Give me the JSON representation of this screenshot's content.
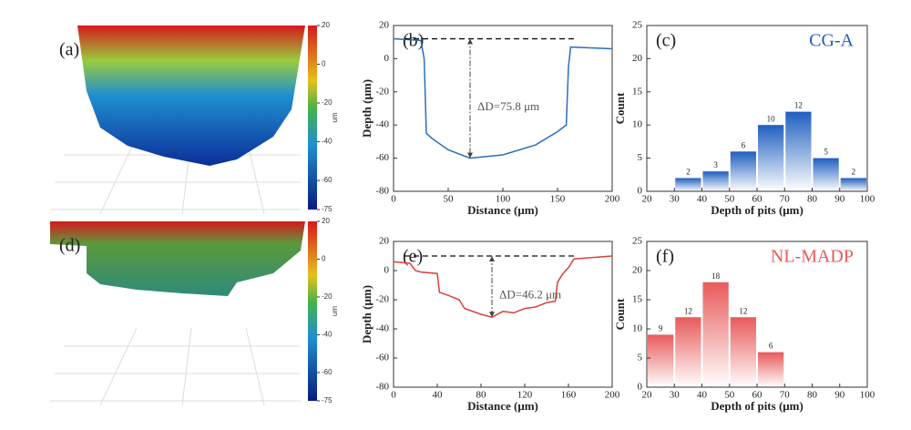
{
  "chart_data": [
    {
      "type": "surface",
      "label": "(a)",
      "colorbar": {
        "label": "um",
        "lim": [
          -75,
          20
        ],
        "ticks": [
          20,
          0,
          -20,
          -40,
          -60,
          -75
        ]
      }
    },
    {
      "type": "line",
      "label": "(b)",
      "xlabel": "Distance (μm)",
      "ylabel": "Depth (μm)",
      "annotation": "ΔD=75.8 μm",
      "color": "#2a6ebb",
      "x": [
        0,
        25,
        28,
        30,
        35,
        50,
        70,
        100,
        130,
        150,
        158,
        160,
        162,
        200
      ],
      "values": [
        12,
        11,
        0,
        -45,
        -48,
        -55,
        -60,
        -58,
        -52,
        -44,
        -40,
        -5,
        7,
        6
      ],
      "xlim": [
        0,
        200
      ],
      "xticks": [
        0,
        50,
        100,
        150,
        200
      ],
      "ylim": [
        -80,
        20
      ],
      "yticks": [
        -80,
        -60,
        -40,
        -20,
        0,
        20
      ]
    },
    {
      "type": "histogram",
      "label": "(c)",
      "title": "CG-A",
      "xlabel": "Depth of pits (μm)",
      "ylabel": "Count",
      "color": "#1f5fbf",
      "bins": [
        30,
        40,
        50,
        60,
        70,
        80,
        90,
        100
      ],
      "values": [
        2,
        3,
        6,
        10,
        12,
        5,
        2
      ],
      "xlim": [
        20,
        100
      ],
      "xticks": [
        20,
        30,
        40,
        50,
        60,
        70,
        80,
        90,
        100
      ],
      "ylim": [
        0,
        25
      ],
      "yticks": [
        0,
        5,
        10,
        15,
        20,
        25
      ]
    },
    {
      "type": "surface",
      "label": "(d)",
      "colorbar": {
        "label": "um",
        "lim": [
          -75,
          20
        ],
        "ticks": [
          20,
          0,
          -20,
          -40,
          -60,
          -75
        ]
      }
    },
    {
      "type": "line",
      "label": "(e)",
      "xlabel": "Distance (μm)",
      "ylabel": "Depth (μm)",
      "annotation": "ΔD=46.2 μm",
      "color": "#d9403a",
      "x": [
        0,
        15,
        20,
        25,
        40,
        42,
        50,
        60,
        65,
        80,
        90,
        100,
        110,
        120,
        130,
        140,
        148,
        150,
        155,
        160,
        165,
        200
      ],
      "values": [
        6,
        5,
        0,
        -1,
        -2,
        -15,
        -17,
        -20,
        -26,
        -30,
        -32,
        -28,
        -29,
        -26,
        -25,
        -22,
        -21,
        -8,
        -2,
        2,
        8,
        10
      ],
      "xlim": [
        0,
        200
      ],
      "xticks": [
        0,
        40,
        80,
        120,
        160,
        200
      ],
      "ylim": [
        -80,
        20
      ],
      "yticks": [
        -80,
        -60,
        -40,
        -20,
        0,
        20
      ]
    },
    {
      "type": "histogram",
      "label": "(f)",
      "title": "NL-MADP",
      "xlabel": "Depth of pits (μm)",
      "ylabel": "Count",
      "color": "#e85a5a",
      "bins": [
        20,
        30,
        40,
        50,
        60,
        70
      ],
      "values": [
        9,
        12,
        18,
        12,
        6
      ],
      "xlim": [
        20,
        100
      ],
      "xticks": [
        20,
        30,
        40,
        50,
        60,
        70,
        80,
        90,
        100
      ],
      "ylim": [
        0,
        25
      ],
      "yticks": [
        0,
        5,
        10,
        15,
        20,
        25
      ]
    }
  ]
}
